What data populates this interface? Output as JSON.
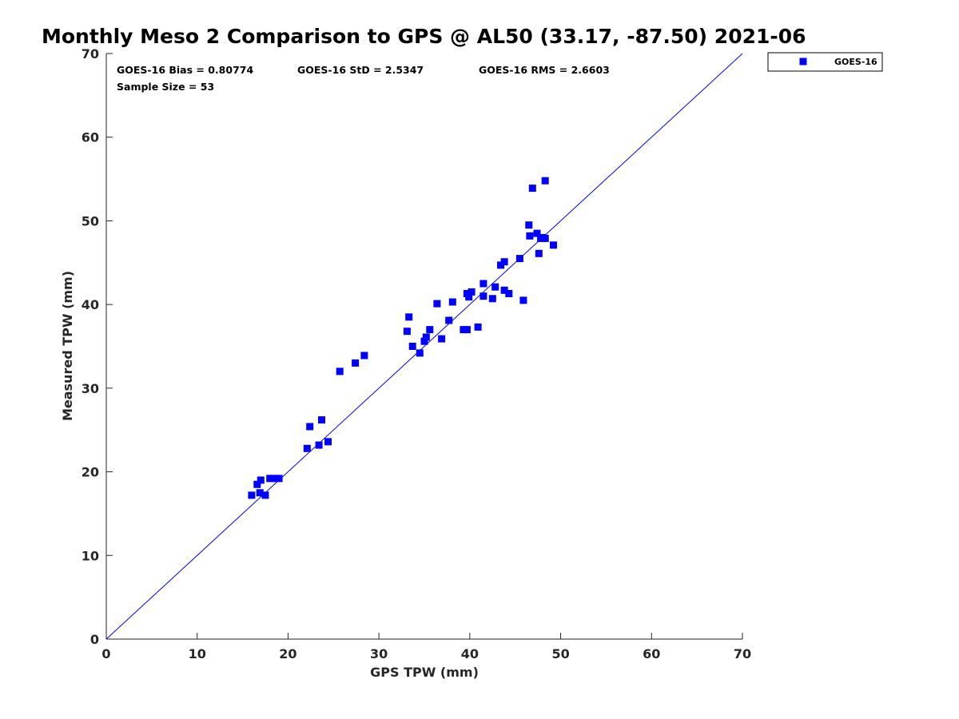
{
  "chart_data": {
    "type": "scatter",
    "title": "Monthly Meso 2 Comparison to GPS @ AL50 (33.17, -87.50) 2021-06",
    "xlabel": "GPS TPW (mm)",
    "ylabel": "Measured TPW (mm)",
    "xlim": [
      0,
      70
    ],
    "ylim": [
      0,
      70
    ],
    "xticks": [
      "0",
      "10",
      "20",
      "30",
      "40",
      "50",
      "60",
      "70"
    ],
    "yticks": [
      "0",
      "10",
      "20",
      "30",
      "40",
      "50",
      "60",
      "70"
    ],
    "grid": false,
    "legend_position": "top-right, outside plot",
    "stats": {
      "bias": "GOES-16 Bias = 0.80774",
      "std": "GOES-16 StD = 2.5347",
      "rms": "GOES-16 RMS = 2.6603",
      "sample_size": "Sample Size = 53"
    },
    "reference_line": {
      "type": "one-to-one",
      "color": "#0000ff"
    },
    "series": [
      {
        "name": "GOES-16",
        "color": "#0000ff",
        "marker": "square",
        "points": [
          [
            16.0,
            17.2
          ],
          [
            16.6,
            18.5
          ],
          [
            16.9,
            17.5
          ],
          [
            17.0,
            19.0
          ],
          [
            17.5,
            17.2
          ],
          [
            18.0,
            19.2
          ],
          [
            18.5,
            19.2
          ],
          [
            19.0,
            19.2
          ],
          [
            22.1,
            22.8
          ],
          [
            22.4,
            25.4
          ],
          [
            23.4,
            23.2
          ],
          [
            23.7,
            26.2
          ],
          [
            24.4,
            23.6
          ],
          [
            25.7,
            32.0
          ],
          [
            27.4,
            33.0
          ],
          [
            28.4,
            33.9
          ],
          [
            33.1,
            36.8
          ],
          [
            33.3,
            38.5
          ],
          [
            33.7,
            35.0
          ],
          [
            34.5,
            34.2
          ],
          [
            35.0,
            35.6
          ],
          [
            35.2,
            36.1
          ],
          [
            35.6,
            37.0
          ],
          [
            36.4,
            40.1
          ],
          [
            36.9,
            35.9
          ],
          [
            37.7,
            38.1
          ],
          [
            38.1,
            40.3
          ],
          [
            39.3,
            37.0
          ],
          [
            39.7,
            37.0
          ],
          [
            39.7,
            41.3
          ],
          [
            39.9,
            40.9
          ],
          [
            40.2,
            41.5
          ],
          [
            40.9,
            37.3
          ],
          [
            41.5,
            41.0
          ],
          [
            41.5,
            42.5
          ],
          [
            42.5,
            40.7
          ],
          [
            42.8,
            42.1
          ],
          [
            43.4,
            44.7
          ],
          [
            43.8,
            45.1
          ],
          [
            43.8,
            41.7
          ],
          [
            44.3,
            41.3
          ],
          [
            45.9,
            40.5
          ],
          [
            46.5,
            49.5
          ],
          [
            46.6,
            48.2
          ],
          [
            46.9,
            53.9
          ],
          [
            47.4,
            48.5
          ],
          [
            47.6,
            46.1
          ],
          [
            47.8,
            47.9
          ],
          [
            48.0,
            48.0
          ],
          [
            48.3,
            47.9
          ],
          [
            48.3,
            54.8
          ],
          [
            49.2,
            47.1
          ],
          [
            45.5,
            45.5
          ]
        ]
      }
    ]
  }
}
